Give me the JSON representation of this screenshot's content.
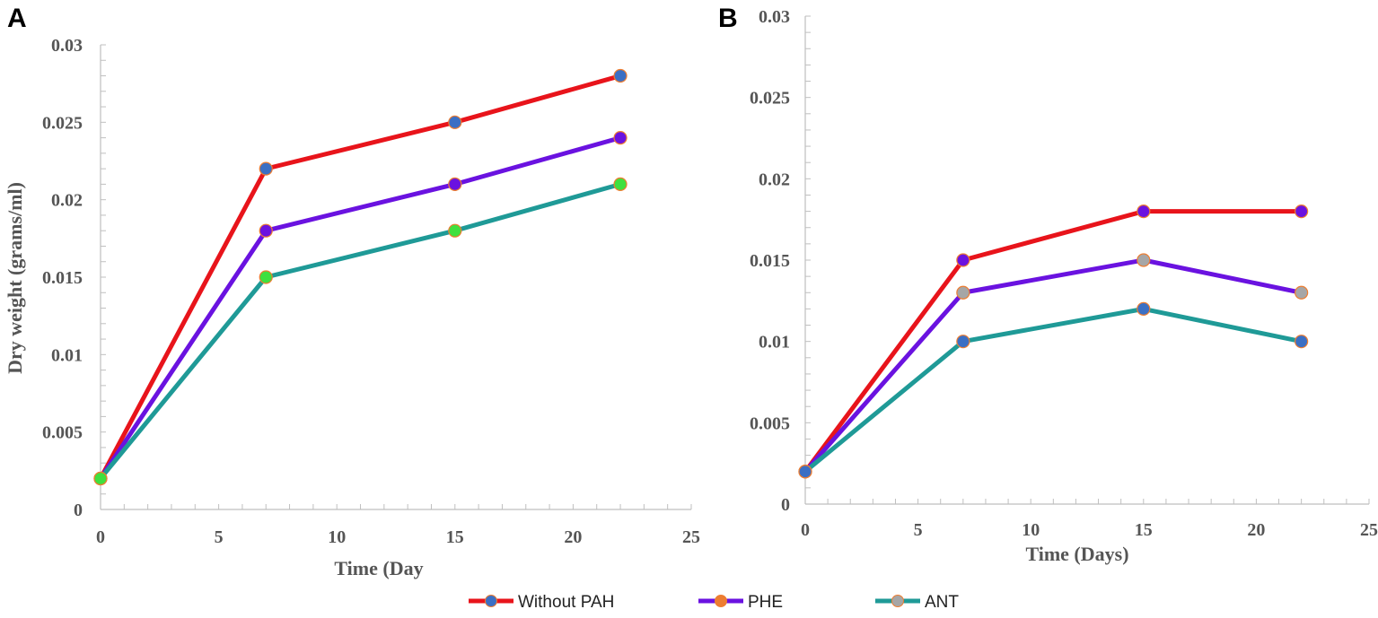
{
  "chart_data": [
    {
      "panel": "A",
      "type": "line",
      "xlabel": "Time (Day",
      "ylabel": "Dry weight (grams/ml)",
      "xlim": [
        0,
        25
      ],
      "ylim": [
        0,
        0.03
      ],
      "xticks": [
        "0",
        "5",
        "10",
        "15",
        "20",
        "25"
      ],
      "yticks": [
        "0",
        "0.005",
        "0.01",
        "0.015",
        "0.02",
        "0.025",
        "0.03"
      ],
      "x": [
        0,
        7,
        15,
        22
      ],
      "series": [
        {
          "name": "Without PAH",
          "values": [
            0.002,
            0.022,
            0.025,
            0.028
          ],
          "color": "#e8141b",
          "markers": [
            "#3b6fc4",
            "#3b6fc4",
            "#3b6fc4",
            "#3b6fc4"
          ]
        },
        {
          "name": "PHE",
          "values": [
            0.002,
            0.018,
            0.021,
            0.024
          ],
          "color": "#6a12e0",
          "markers": [
            "#6a12e0",
            "#6a12e0",
            "#6a12e0",
            "#6a12e0"
          ]
        },
        {
          "name": "ANT",
          "values": [
            0.002,
            0.015,
            0.018,
            0.021
          ],
          "color": "#1f9a97",
          "markers": [
            "#3fe03f",
            "#3fe03f",
            "#3fe03f",
            "#3fe03f"
          ]
        }
      ]
    },
    {
      "panel": "B",
      "type": "line",
      "xlabel": "Time  (Days)",
      "ylabel": "",
      "xlim": [
        0,
        25
      ],
      "ylim": [
        0,
        0.03
      ],
      "xticks": [
        "0",
        "5",
        "10",
        "15",
        "20",
        "25"
      ],
      "yticks": [
        "0",
        "0.005",
        "0.01",
        "0.015",
        "0.02",
        "0.025",
        "0.03"
      ],
      "x": [
        0,
        7,
        15,
        22
      ],
      "series": [
        {
          "name": "Without PAH",
          "values": [
            0.002,
            0.015,
            0.018,
            0.018
          ],
          "color": "#e8141b",
          "markers": [
            "#3b6fc4",
            "#6a12e0",
            "#6a12e0",
            "#6a12e0"
          ]
        },
        {
          "name": "PHE",
          "values": [
            0.002,
            0.013,
            0.015,
            0.013
          ],
          "color": "#6a12e0",
          "markers": [
            "#3b6fc4",
            "#a6a6a6",
            "#a6a6a6",
            "#a6a6a6"
          ]
        },
        {
          "name": "ANT",
          "values": [
            0.002,
            0.01,
            0.012,
            0.01
          ],
          "color": "#1f9a97",
          "markers": [
            "#3b6fc4",
            "#3b6fc4",
            "#3b6fc4",
            "#3b6fc4"
          ]
        }
      ]
    }
  ],
  "legend": [
    {
      "label": "Without PAH",
      "line": "#e8141b",
      "marker": "#3b6fc4"
    },
    {
      "label": "PHE",
      "line": "#6a12e0",
      "marker": "#ed7d31"
    },
    {
      "label": "ANT",
      "line": "#1f9a97",
      "marker": "#a6a6a6"
    }
  ],
  "marker_edge_color": "#ed7d31"
}
